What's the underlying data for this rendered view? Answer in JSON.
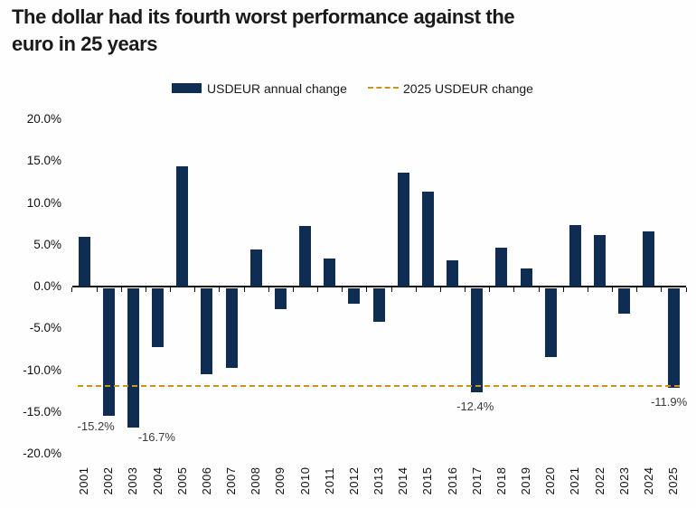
{
  "title": {
    "line1": "The dollar had its fourth worst performance against the",
    "line2": "euro in 25 years"
  },
  "legend": {
    "bars": "USDEUR annual change",
    "line": "2025 USDEUR change"
  },
  "colors": {
    "bar": "#0F2D52",
    "dash_line": "#C9941F",
    "title_text": "#1A1A1A"
  },
  "chart_data": {
    "type": "bar",
    "title": "The dollar had its fourth worst performance against the euro in 25 years",
    "series_name": "USDEUR annual change",
    "categories": [
      2001,
      2002,
      2003,
      2004,
      2005,
      2006,
      2007,
      2008,
      2009,
      2010,
      2011,
      2012,
      2013,
      2014,
      2015,
      2016,
      2017,
      2018,
      2019,
      2020,
      2021,
      2022,
      2023,
      2024,
      2025
    ],
    "values": [
      6.0,
      -15.2,
      -16.7,
      -7.0,
      14.4,
      -10.3,
      -9.5,
      4.4,
      -2.5,
      7.2,
      3.3,
      -1.8,
      -4.0,
      13.6,
      11.4,
      3.1,
      -12.4,
      4.7,
      2.2,
      -8.2,
      7.4,
      6.2,
      -3.0,
      6.6,
      -11.9
    ],
    "reference_line": {
      "label": "2025 USDEUR change",
      "value": -11.9,
      "style": "dashed",
      "color": "#C9941F"
    },
    "ylim": [
      -20,
      20
    ],
    "yticks": [
      20,
      15,
      10,
      5,
      0,
      -5,
      -10,
      -15,
      -20
    ],
    "ytick_format": "0.0%",
    "grid": false,
    "legend_position": "top",
    "annotations": [
      {
        "year": 2002,
        "text": "-15.2%"
      },
      {
        "year": 2003,
        "text": "-16.7%"
      },
      {
        "year": 2017,
        "text": "-12.4%"
      },
      {
        "year": 2025,
        "text": "-11.9%"
      }
    ]
  }
}
